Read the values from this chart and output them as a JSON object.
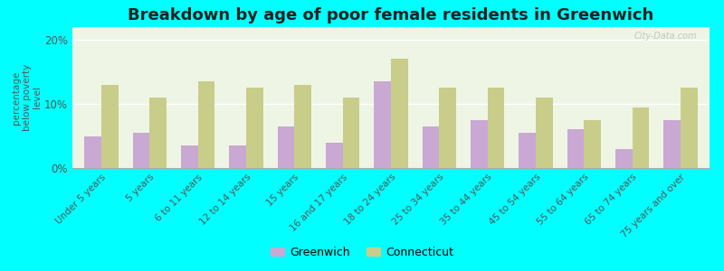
{
  "title": "Breakdown by age of poor female residents in Greenwich",
  "ylabel": "percentage\nbelow poverty\nlevel",
  "categories": [
    "Under 5 years",
    "5 years",
    "6 to 11 years",
    "12 to 14 years",
    "15 years",
    "16 and 17 years",
    "18 to 24 years",
    "25 to 34 years",
    "35 to 44 years",
    "45 to 54 years",
    "55 to 64 years",
    "65 to 74 years",
    "75 years and over"
  ],
  "greenwich_values": [
    5.0,
    5.5,
    3.5,
    3.5,
    6.5,
    4.0,
    13.5,
    6.5,
    7.5,
    5.5,
    6.0,
    3.0,
    7.5
  ],
  "connecticut_values": [
    13.0,
    11.0,
    13.5,
    12.5,
    13.0,
    11.0,
    17.0,
    12.5,
    12.5,
    11.0,
    7.5,
    9.5,
    12.5
  ],
  "greenwich_color": "#c9a8d4",
  "connecticut_color": "#c8cd8a",
  "background_color": "#eef5e4",
  "outer_background": "#00ffff",
  "yticks": [
    0,
    10,
    20
  ],
  "ylim": [
    0,
    22
  ],
  "title_fontsize": 13,
  "legend_labels": [
    "Greenwich",
    "Connecticut"
  ],
  "watermark": "City-Data.com"
}
